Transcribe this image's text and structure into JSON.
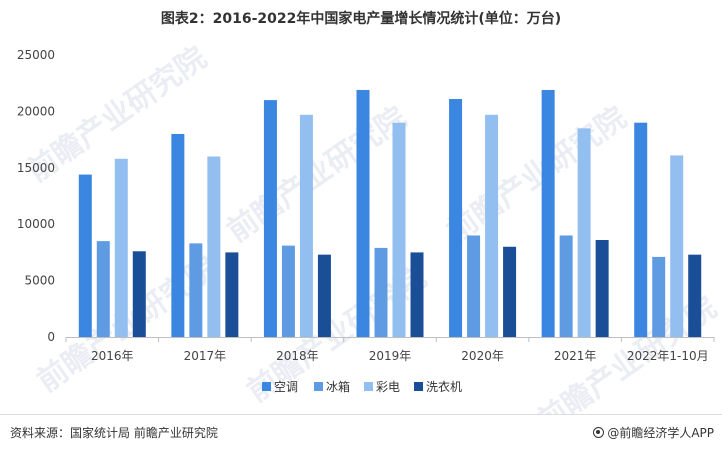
{
  "title": "图表2：2016-2022年中国家电产量增长情况统计(单位：万台)",
  "footer": {
    "source": "资料来源：国家统计局 前瞻产业研究院",
    "credit": "@前瞻经济学人APP"
  },
  "watermark": "前瞻产业研究院",
  "colors": {
    "空调": "#3b86e0",
    "冰箱": "#5f9be3",
    "彩电": "#93bff0",
    "洗衣机": "#1a4f98"
  },
  "chart_data": {
    "type": "bar",
    "title": "图表2：2016-2022年中国家电产量增长情况统计(单位：万台)",
    "categories": [
      "2016年",
      "2017年",
      "2018年",
      "2019年",
      "2020年",
      "2021年",
      "2022年1-10月"
    ],
    "series": [
      {
        "name": "空调",
        "values": [
          14400,
          18000,
          21000,
          21900,
          21100,
          21900,
          19000
        ]
      },
      {
        "name": "冰箱",
        "values": [
          8500,
          8300,
          8100,
          7900,
          9000,
          9000,
          7100
        ]
      },
      {
        "name": "彩电",
        "values": [
          15800,
          16000,
          19700,
          19000,
          19700,
          18500,
          16100
        ]
      },
      {
        "name": "洗衣机",
        "values": [
          7600,
          7500,
          7300,
          7500,
          8000,
          8600,
          7300
        ]
      }
    ],
    "ylim": [
      0,
      25000
    ],
    "yticks": [
      "0",
      "5000",
      "10000",
      "15000",
      "20000",
      "25000"
    ],
    "xlabel": "",
    "ylabel": "",
    "legend": "bottom",
    "grid": false
  }
}
